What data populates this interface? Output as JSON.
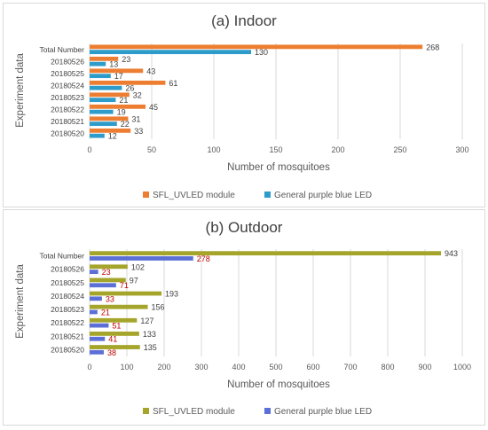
{
  "chart_data": [
    {
      "type": "bar",
      "orientation": "horizontal",
      "title": "(a) Indoor",
      "xlabel": "Number of mosquitoes",
      "ylabel": "Experiment data",
      "categories": [
        "20180520",
        "20180521",
        "20180522",
        "20180523",
        "20180524",
        "20180525",
        "20180526",
        "Total Number"
      ],
      "series": [
        {
          "name": "SFL_UVLED  module",
          "color": "#ED7D31",
          "values": [
            33,
            31,
            45,
            32,
            61,
            43,
            23,
            268
          ]
        },
        {
          "name": "General purple blue LED",
          "color": "#2E9CCA",
          "values": [
            12,
            22,
            19,
            21,
            26,
            17,
            13,
            130
          ]
        }
      ],
      "xlim": [
        0,
        300
      ],
      "xticks": [
        0,
        50,
        100,
        150,
        200,
        250,
        300
      ],
      "grid": true,
      "legend": "bottom"
    },
    {
      "type": "bar",
      "orientation": "horizontal",
      "title": "(b) Outdoor",
      "xlabel": "Number of mosquitoes",
      "ylabel": "Experiment data",
      "categories": [
        "20180520",
        "20180521",
        "20180522",
        "20180523",
        "20180524",
        "20180525",
        "20180526",
        "Total Number"
      ],
      "series": [
        {
          "name": "SFL_UVLED  module",
          "color": "#A5A52C",
          "values": [
            135,
            133,
            127,
            156,
            193,
            97,
            102,
            943
          ]
        },
        {
          "name": "General purple blue LED",
          "color": "#5B6FD6",
          "values": [
            38,
            41,
            51,
            21,
            33,
            71,
            23,
            278
          ]
        }
      ],
      "xlim": [
        0,
        1000
      ],
      "xticks": [
        0,
        100,
        200,
        300,
        400,
        500,
        600,
        700,
        800,
        900,
        1000
      ],
      "grid": true,
      "legend": "bottom"
    }
  ]
}
